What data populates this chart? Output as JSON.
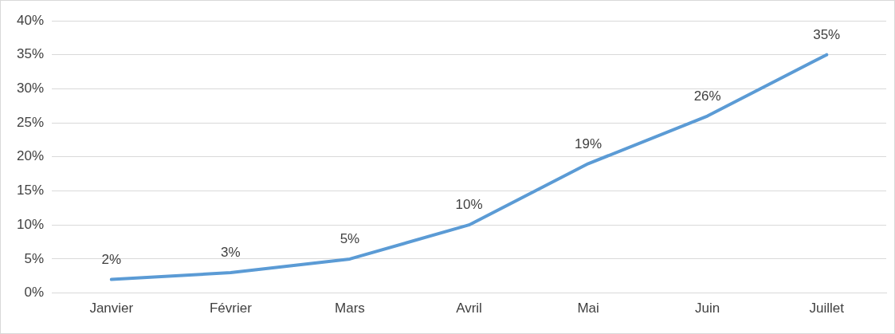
{
  "chart_data": {
    "type": "line",
    "categories": [
      "Janvier",
      "Février",
      "Mars",
      "Avril",
      "Mai",
      "Juin",
      "Juillet"
    ],
    "series": [
      {
        "color": "#5b9bd5",
        "values": [
          2,
          3,
          5,
          10,
          19,
          26,
          35
        ],
        "value_labels": [
          "2%",
          "3%",
          "5%",
          "10%",
          "19%",
          "26%",
          "35%"
        ]
      }
    ],
    "ylim": [
      0,
      40
    ],
    "yticks": [
      {
        "value": 0,
        "label": "0%"
      },
      {
        "value": 5,
        "label": "5%"
      },
      {
        "value": 10,
        "label": "10%"
      },
      {
        "value": 15,
        "label": "15%"
      },
      {
        "value": 20,
        "label": "20%"
      },
      {
        "value": 25,
        "label": "25%"
      },
      {
        "value": 30,
        "label": "30%"
      },
      {
        "value": 35,
        "label": "35%"
      },
      {
        "value": 40,
        "label": "40%"
      }
    ],
    "grid": "y",
    "legend": false,
    "marker": "none"
  }
}
